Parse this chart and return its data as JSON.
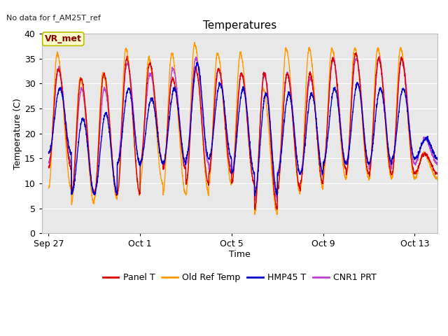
{
  "title": "Temperatures",
  "xlabel": "Time",
  "ylabel": "Temperature (C)",
  "top_left_text": "No data for f_AM25T_ref",
  "annotation_text": "VR_met",
  "ylim": [
    0,
    40
  ],
  "bg_color": "#e8e8e8",
  "fig_color": "#ffffff",
  "line_colors": {
    "panel": "#dd0000",
    "oldref": "#ff9900",
    "hmp45": "#0000cc",
    "cnr1": "#bb44cc"
  },
  "legend_labels": [
    "Panel T",
    "Old Ref Temp",
    "HMP45 T",
    "CNR1 PRT"
  ],
  "num_days": 17,
  "x_ticks_labels": [
    "Sep 27",
    "Oct 1",
    "Oct 5",
    "Oct 9",
    "Oct 13"
  ],
  "x_ticks_positions": [
    0,
    4,
    8,
    12,
    16
  ],
  "day_min_panel": [
    13,
    8,
    8,
    8,
    14,
    13,
    10,
    12,
    10,
    5,
    9,
    10,
    13,
    12,
    12,
    12,
    12
  ],
  "day_max_panel": [
    33,
    31,
    32,
    35,
    34,
    31,
    33,
    33,
    32,
    32,
    32,
    32,
    35,
    36,
    35,
    35,
    16
  ],
  "day_min_oldref": [
    9,
    6,
    7,
    8,
    10,
    8,
    8,
    10,
    10,
    4,
    8,
    9,
    11,
    11,
    11,
    11,
    11
  ],
  "day_max_oldref": [
    36,
    31,
    32,
    37,
    35,
    36,
    38,
    36,
    36,
    29,
    37,
    37,
    37,
    37,
    37,
    37,
    16
  ],
  "day_min_hmp45": [
    16,
    8,
    8,
    14,
    14,
    14,
    15,
    15,
    12,
    8,
    12,
    12,
    14,
    14,
    14,
    15,
    15
  ],
  "day_max_hmp45": [
    29,
    23,
    24,
    29,
    27,
    29,
    34,
    30,
    29,
    28,
    28,
    28,
    29,
    30,
    29,
    29,
    19
  ],
  "day_min_cnr1": [
    14,
    8,
    8,
    14,
    14,
    13,
    14,
    13,
    12,
    7,
    12,
    12,
    14,
    14,
    13,
    14,
    14
  ],
  "day_max_cnr1": [
    33,
    29,
    29,
    34,
    32,
    33,
    35,
    33,
    32,
    32,
    32,
    31,
    35,
    35,
    35,
    35,
    19
  ]
}
